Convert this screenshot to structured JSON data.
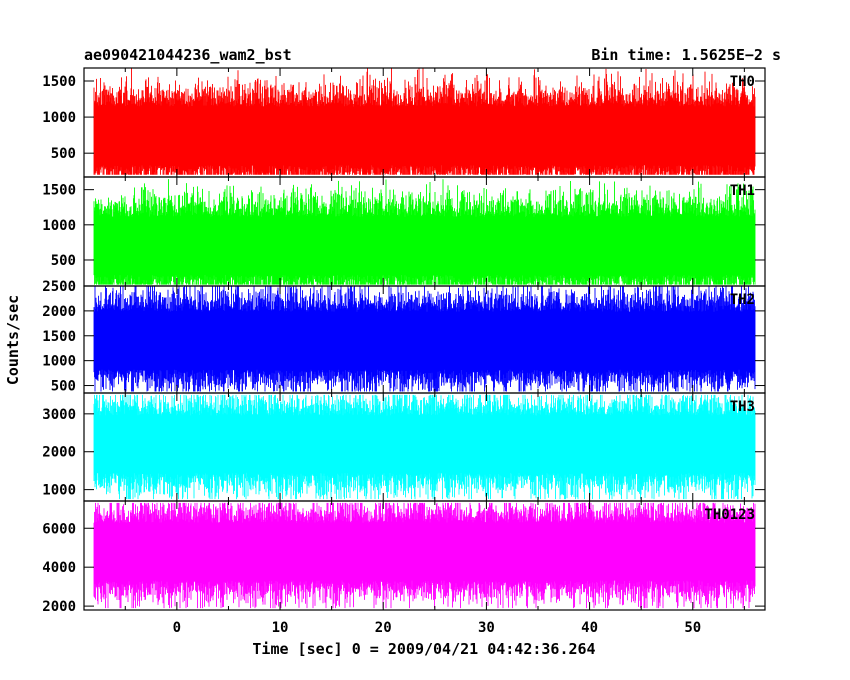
{
  "header": {
    "left_title": "ae090421044236_wam2_bst",
    "right_title": "Bin time: 1.5625E−2 s"
  },
  "chart_data": {
    "type": "line",
    "xlabel": "Time [sec] 0 = 2009/04/21 04:42:36.264",
    "ylabel": "Counts/sec",
    "xlim": [
      -9,
      57
    ],
    "x_ticks": [
      0,
      10,
      20,
      30,
      40,
      50
    ],
    "x_data_range": [
      -8.0,
      56.0
    ],
    "bin_time": 0.015625,
    "panels": [
      {
        "name": "TH0",
        "color": "#ff0000",
        "ylim": [
          170,
          1680
        ],
        "y_ticks": [
          500,
          1000,
          1500
        ],
        "mean": 740,
        "min": 200,
        "max": 1680
      },
      {
        "name": "TH1",
        "color": "#00ff00",
        "ylim": [
          130,
          1680
        ],
        "y_ticks": [
          500,
          1000,
          1500
        ],
        "mean": 700,
        "min": 150,
        "max": 1650
      },
      {
        "name": "TH2",
        "color": "#0000ff",
        "ylim": [
          350,
          2500
        ],
        "y_ticks": [
          500,
          1000,
          1500,
          2000,
          2500
        ],
        "mean": 1400,
        "min": 380,
        "max": 2500
      },
      {
        "name": "TH3",
        "color": "#00ffff",
        "ylim": [
          700,
          3550
        ],
        "y_ticks": [
          1000,
          2000,
          3000
        ],
        "mean": 2200,
        "min": 750,
        "max": 3500
      },
      {
        "name": "TH0123",
        "color": "#ff00ff",
        "ylim": [
          1800,
          7400
        ],
        "y_ticks": [
          2000,
          4000,
          6000
        ],
        "mean": 4800,
        "min": 1900,
        "max": 7300
      }
    ]
  }
}
